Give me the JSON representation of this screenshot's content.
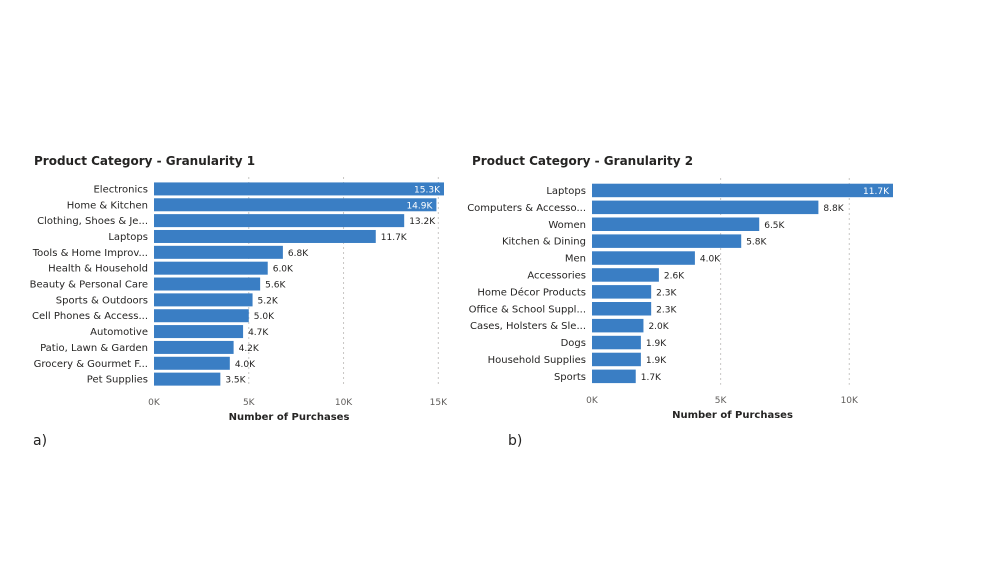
{
  "panel_labels": {
    "a": "a)",
    "b": "b)"
  },
  "chart_data": [
    {
      "type": "bar",
      "orientation": "horizontal",
      "title": "Product Category - Granularity 1",
      "xlabel": "Number of Purchases",
      "ylabel": "",
      "xlim": [
        0,
        15300
      ],
      "x_ticks": [
        {
          "value": 0,
          "label": "0K"
        },
        {
          "value": 5000,
          "label": "5K"
        },
        {
          "value": 10000,
          "label": "10K"
        },
        {
          "value": 15000,
          "label": "15K"
        }
      ],
      "grid": true,
      "bar_color": "#3a7ec4",
      "categories": [
        "Electronics",
        "Home & Kitchen",
        "Clothing, Shoes & Je...",
        "Laptops",
        "Tools & Home Improv...",
        "Health & Household",
        "Beauty & Personal Care",
        "Sports & Outdoors",
        "Cell Phones & Access...",
        "Automotive",
        "Patio, Lawn & Garden",
        "Grocery & Gourmet F...",
        "Pet Supplies"
      ],
      "values": [
        15300,
        14900,
        13200,
        11700,
        6800,
        6000,
        5600,
        5200,
        5000,
        4700,
        4200,
        4000,
        3500
      ],
      "data_labels": [
        "15.3K",
        "14.9K",
        "13.2K",
        "11.7K",
        "6.8K",
        "6.0K",
        "5.6K",
        "5.2K",
        "5.0K",
        "4.7K",
        "4.2K",
        "4.0K",
        "3.5K"
      ]
    },
    {
      "type": "bar",
      "orientation": "horizontal",
      "title": "Product Category - Granularity 2",
      "xlabel": "Number of Purchases",
      "ylabel": "",
      "xlim": [
        0,
        11700
      ],
      "x_ticks": [
        {
          "value": 0,
          "label": "0K"
        },
        {
          "value": 5000,
          "label": "5K"
        },
        {
          "value": 10000,
          "label": "10K"
        }
      ],
      "grid": true,
      "bar_color": "#3a7ec4",
      "categories": [
        "Laptops",
        "Computers & Accesso...",
        "Women",
        "Kitchen & Dining",
        "Men",
        "Accessories",
        "Home Décor Products",
        "Office & School Suppl...",
        "Cases, Holsters & Sle...",
        "Dogs",
        "Household Supplies",
        "Sports"
      ],
      "values": [
        11700,
        8800,
        6500,
        5800,
        4000,
        2600,
        2300,
        2300,
        2000,
        1900,
        1900,
        1700
      ],
      "data_labels": [
        "11.7K",
        "8.8K",
        "6.5K",
        "5.8K",
        "4.0K",
        "2.6K",
        "2.3K",
        "2.3K",
        "2.0K",
        "1.9K",
        "1.9K",
        "1.7K"
      ]
    }
  ]
}
